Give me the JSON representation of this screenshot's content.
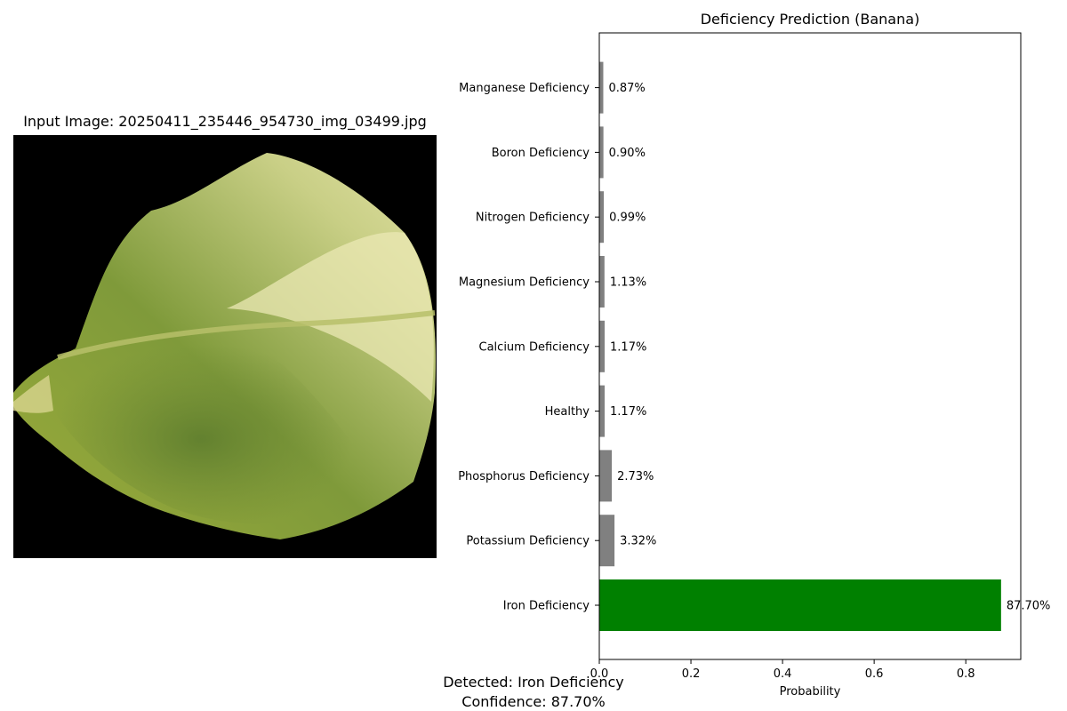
{
  "image_panel": {
    "title": "Input Image: 20250411_235446_954730_img_03499.jpg",
    "image_subject": "banana-leaf"
  },
  "chart_data": {
    "type": "bar",
    "orientation": "horizontal",
    "title": "Deficiency Prediction (Banana)",
    "xlabel": "Probability",
    "ylabel": "",
    "xlim": [
      0,
      0.92
    ],
    "x_ticks": [
      "0.0",
      "0.2",
      "0.4",
      "0.6",
      "0.8"
    ],
    "grid": false,
    "categories": [
      "Iron Deficiency",
      "Potassium Deficiency",
      "Phosphorus Deficiency",
      "Healthy",
      "Calcium Deficiency",
      "Magnesium Deficiency",
      "Nitrogen Deficiency",
      "Boron Deficiency",
      "Manganese Deficiency"
    ],
    "values": [
      0.877,
      0.0332,
      0.0273,
      0.0117,
      0.0117,
      0.0113,
      0.0099,
      0.009,
      0.0087
    ],
    "value_labels": [
      "87.70%",
      "3.32%",
      "2.73%",
      "1.17%",
      "1.17%",
      "1.13%",
      "0.99%",
      "0.90%",
      "0.87%"
    ],
    "colors": {
      "highlight": "#008000",
      "default": "#808080"
    }
  },
  "result": {
    "detected": "Detected: Iron Deficiency",
    "confidence": "Confidence: 87.70%"
  }
}
